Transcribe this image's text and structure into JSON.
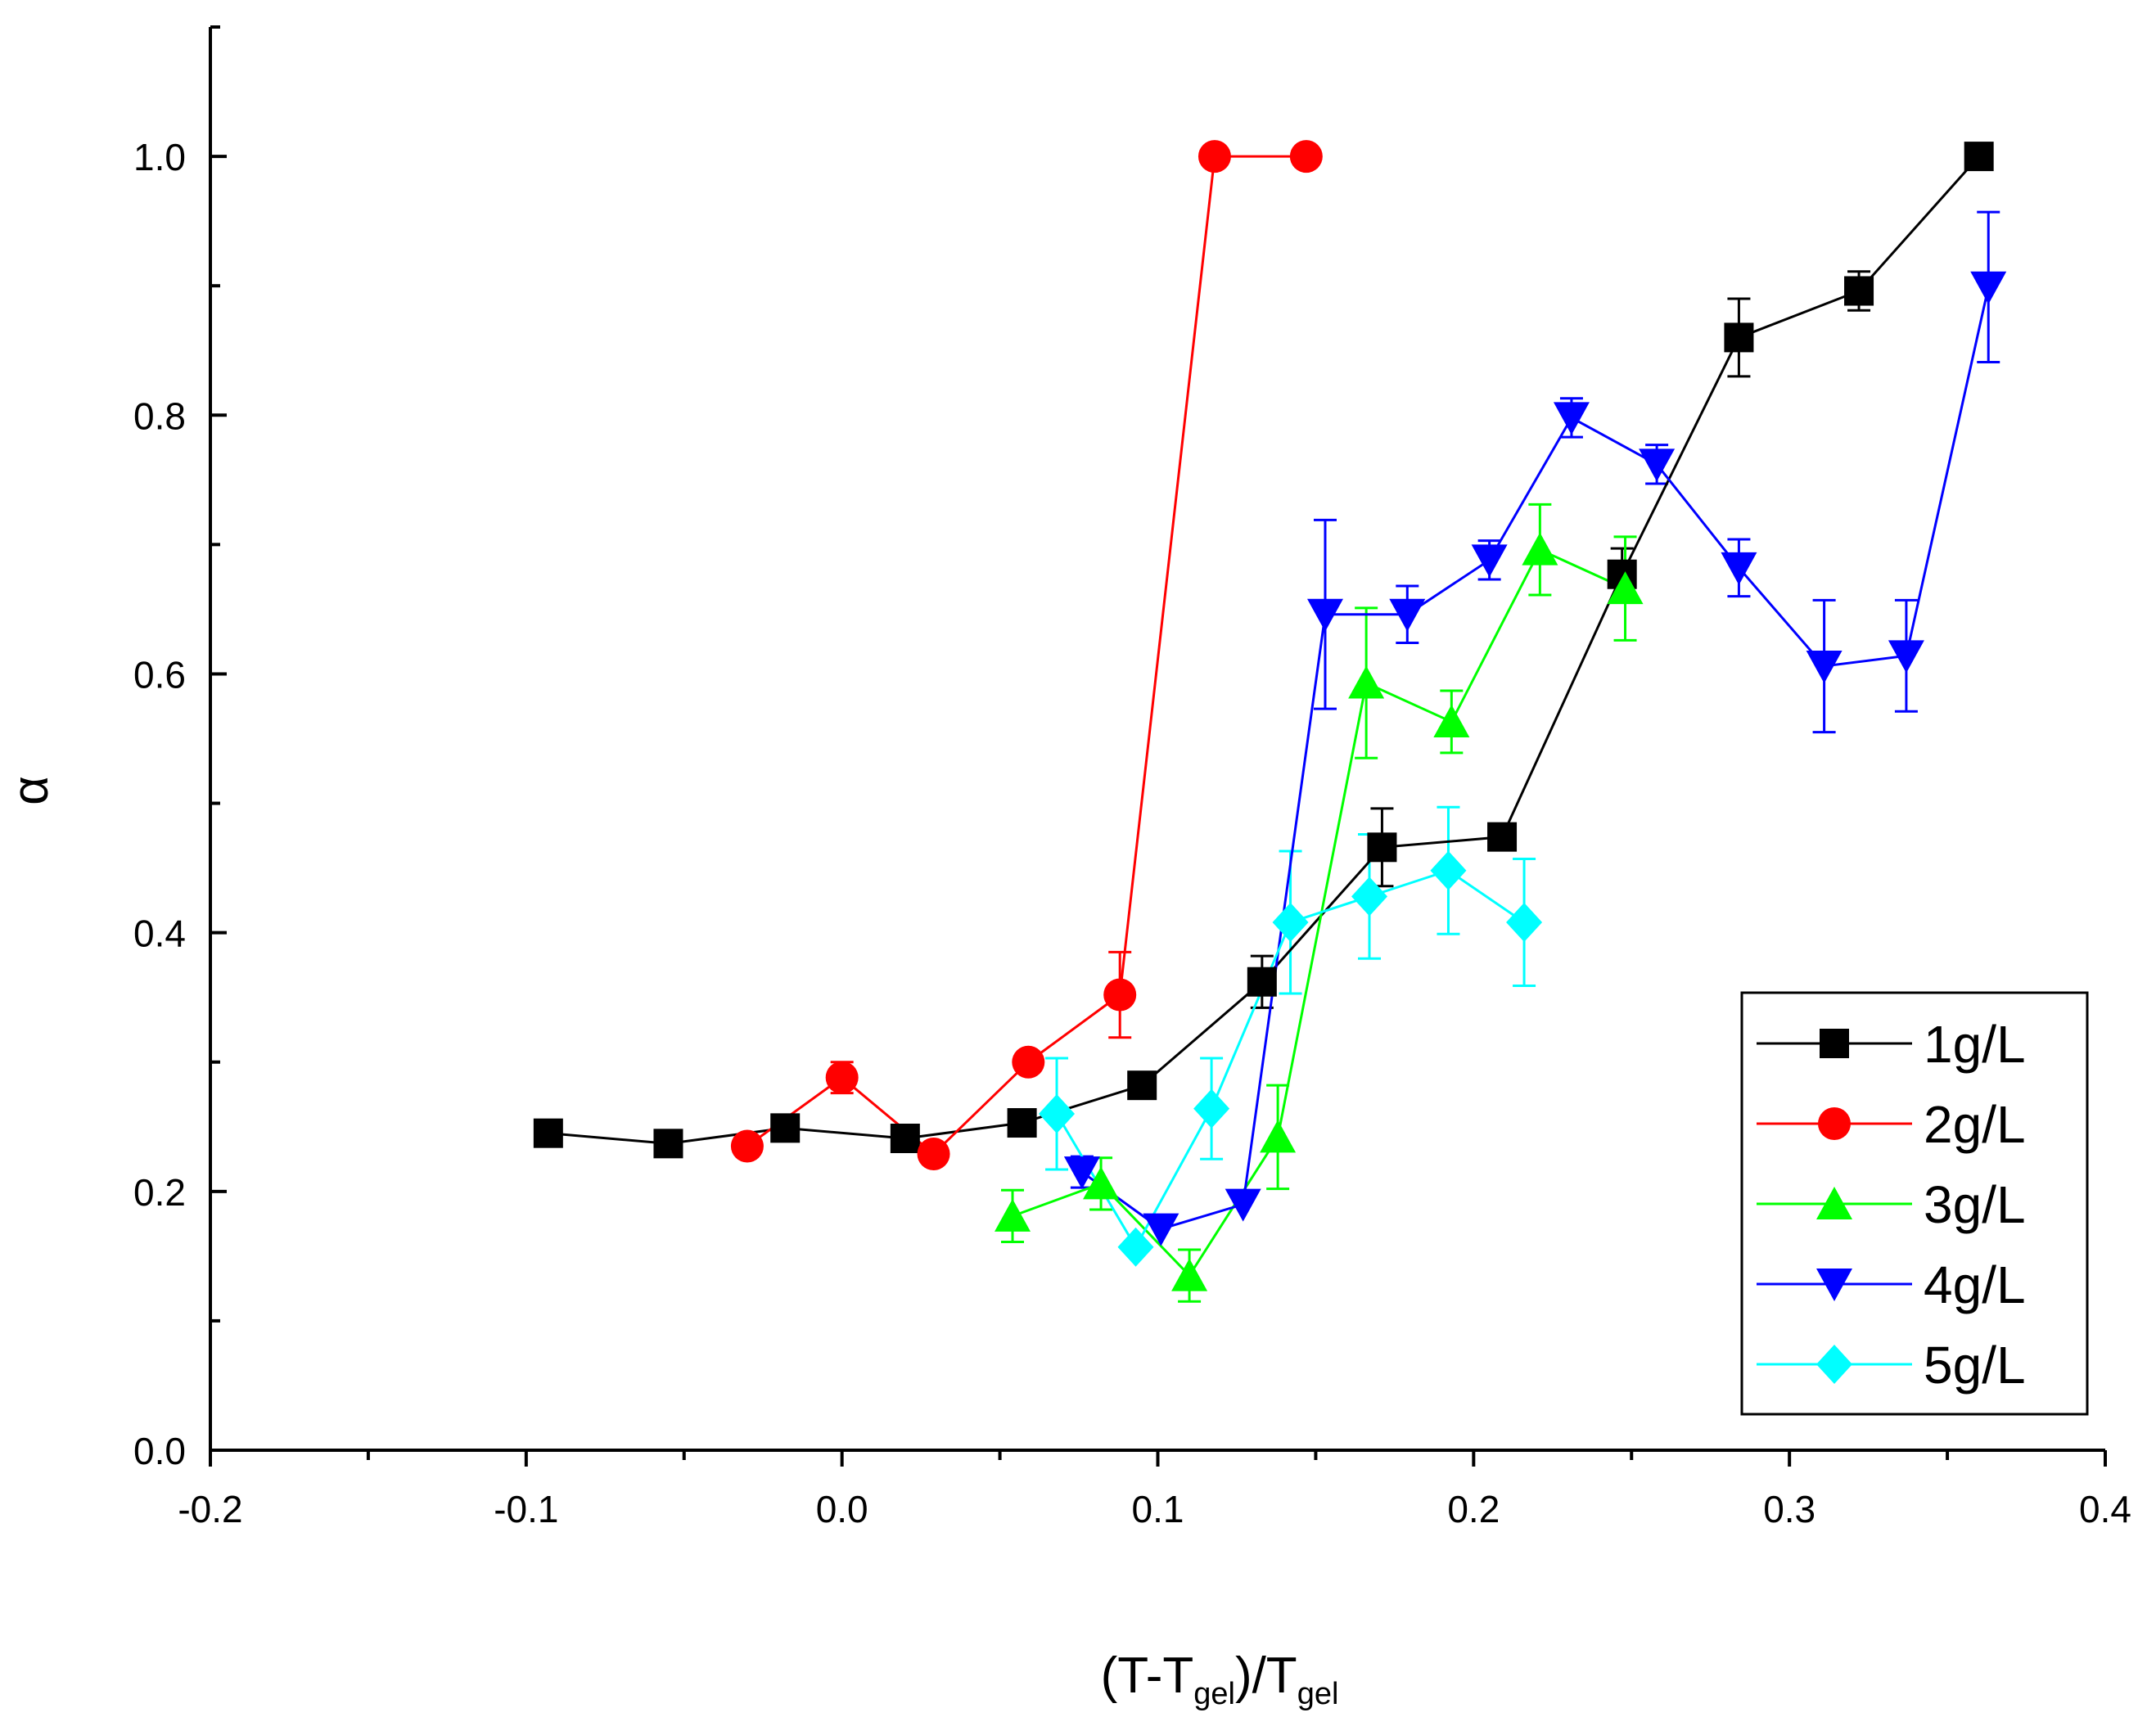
{
  "chart_data": {
    "type": "scatter",
    "title": "",
    "xlabel": "(T-Tgel)/Tgel",
    "xlabel_parts": {
      "open": "(T-T",
      "sub1": "gel",
      "mid": ")/T",
      "sub2": "gel"
    },
    "ylabel": "α",
    "xlim": [
      -0.2,
      0.4
    ],
    "ylim": [
      0.0,
      1.1
    ],
    "x_ticks": [
      -0.2,
      -0.1,
      0.0,
      0.1,
      0.2,
      0.3,
      0.4
    ],
    "x_tick_labels": [
      "-0.2",
      "-0.1",
      "0.0",
      "0.1",
      "0.2",
      "0.3",
      "0.4"
    ],
    "y_ticks": [
      0.0,
      0.2,
      0.4,
      0.6,
      0.8,
      1.0
    ],
    "y_tick_labels": [
      "0.0",
      "0.2",
      "0.4",
      "0.6",
      "0.8",
      "1.0"
    ],
    "legend_position": "bottom-right",
    "series": [
      {
        "name": "1g/L",
        "marker": "square",
        "color": "#000000",
        "x": [
          -0.093,
          -0.055,
          -0.018,
          0.02,
          0.057,
          0.095,
          0.133,
          0.171,
          0.209,
          0.247,
          0.284,
          0.322,
          0.36
        ],
        "y": [
          0.245,
          0.237,
          0.249,
          0.241,
          0.253,
          0.282,
          0.362,
          0.466,
          0.474,
          0.677,
          0.86,
          0.896,
          1.0
        ],
        "err": [
          0,
          0,
          0,
          0,
          0,
          0,
          0.02,
          0.03,
          0,
          0.02,
          0.03,
          0.015,
          0
        ]
      },
      {
        "name": "2g/L",
        "marker": "circle",
        "color": "#ff0000",
        "x": [
          -0.03,
          0.0,
          0.029,
          0.059,
          0.088,
          0.118,
          0.147
        ],
        "y": [
          0.235,
          0.288,
          0.229,
          0.3,
          0.352,
          1.0,
          1.0
        ],
        "err": [
          0,
          0.012,
          0,
          0,
          0.033,
          0,
          0
        ]
      },
      {
        "name": "3g/L",
        "marker": "triangle-up",
        "color": "#00ff00",
        "x": [
          0.054,
          0.082,
          0.11,
          0.138,
          0.166,
          0.193,
          0.221,
          0.248
        ],
        "y": [
          0.181,
          0.206,
          0.135,
          0.242,
          0.593,
          0.563,
          0.696,
          0.666
        ],
        "err": [
          0.02,
          0.02,
          0.02,
          0.04,
          0.058,
          0.024,
          0.035,
          0.04
        ]
      },
      {
        "name": "4g/L",
        "marker": "triangle-down",
        "color": "#0000ff",
        "x": [
          0.076,
          0.101,
          0.127,
          0.153,
          0.179,
          0.205,
          0.231,
          0.258,
          0.284,
          0.311,
          0.337,
          0.363
        ],
        "y": [
          0.215,
          0.171,
          0.19,
          0.646,
          0.646,
          0.688,
          0.798,
          0.762,
          0.682,
          0.606,
          0.614,
          0.899
        ],
        "err": [
          0.012,
          0,
          0,
          0.073,
          0.022,
          0.015,
          0.015,
          0.015,
          0.022,
          0.051,
          0.043,
          0.058
        ]
      },
      {
        "name": "5g/L",
        "marker": "diamond",
        "color": "#00ffff",
        "x": [
          0.068,
          0.093,
          0.117,
          0.142,
          0.167,
          0.192,
          0.216
        ],
        "y": [
          0.26,
          0.157,
          0.264,
          0.408,
          0.428,
          0.448,
          0.408
        ],
        "err": [
          0.043,
          0,
          0.039,
          0.055,
          0.048,
          0.049,
          0.049
        ]
      }
    ]
  }
}
